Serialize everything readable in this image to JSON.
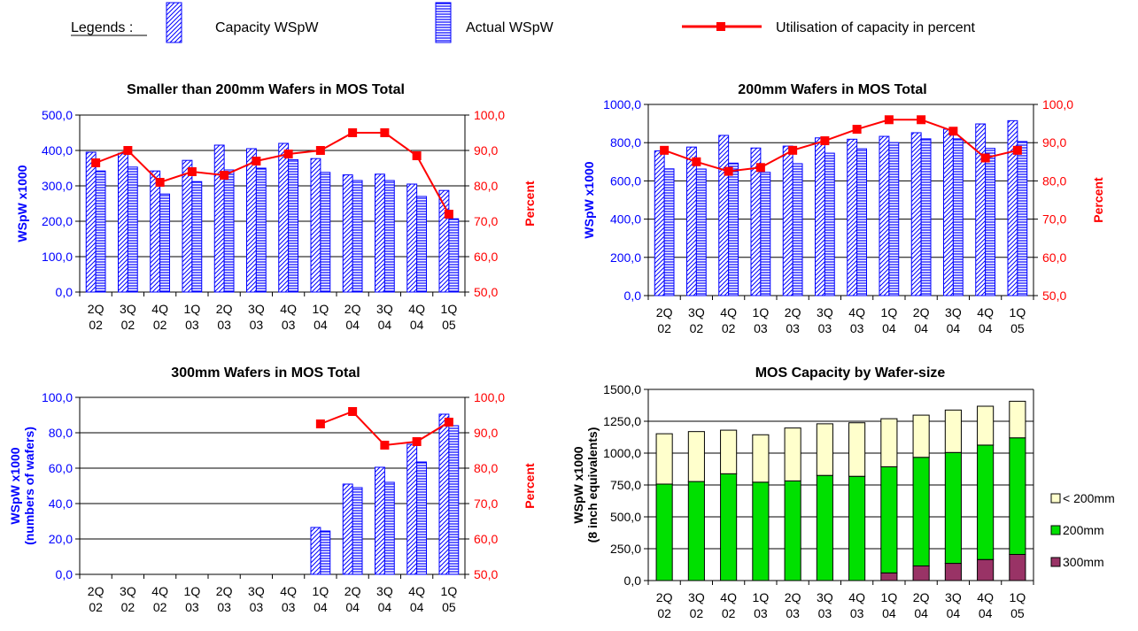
{
  "legend": {
    "title": "Legends :",
    "items": [
      "Capacity  WSpW",
      "Actual  WSpW",
      "Utilisation of capacity in percent"
    ]
  },
  "colors": {
    "blue": "#0000ff",
    "red": "#ff0000",
    "green": "#00e000",
    "cream": "#ffffcc",
    "maroon": "#993366",
    "grid": "#000000"
  },
  "chart_data": [
    {
      "type": "bar",
      "title": "Smaller than 200mm Wafers in MOS Total",
      "categories": [
        [
          "2Q",
          "02"
        ],
        [
          "3Q",
          "02"
        ],
        [
          "4Q",
          "02"
        ],
        [
          "1Q",
          "03"
        ],
        [
          "2Q",
          "03"
        ],
        [
          "3Q",
          "03"
        ],
        [
          "4Q",
          "03"
        ],
        [
          "1Q",
          "04"
        ],
        [
          "2Q",
          "04"
        ],
        [
          "3Q",
          "04"
        ],
        [
          "4Q",
          "04"
        ],
        [
          "1Q",
          "05"
        ]
      ],
      "ylabel": "WSpW x1000",
      "y2label": "Percent",
      "ylim": [
        0,
        500
      ],
      "yticks": [
        "0,0",
        "100,0",
        "200,0",
        "300,0",
        "400,0",
        "500,0"
      ],
      "y2lim": [
        50,
        100
      ],
      "y2ticks": [
        "50,0",
        "60,0",
        "70,0",
        "80,0",
        "90,0",
        "100,0"
      ],
      "series": [
        {
          "name": "Capacity  WSpW",
          "values": [
            395,
            392,
            342,
            372,
            415,
            405,
            420,
            377,
            331,
            333,
            305,
            287
          ]
        },
        {
          "name": "Actual  WSpW",
          "values": [
            342,
            353,
            277,
            312,
            345,
            350,
            374,
            338,
            315,
            315,
            270,
            207
          ]
        },
        {
          "name": "Utilisation of capacity in percent",
          "values": [
            86.5,
            90,
            81,
            84,
            83,
            87,
            89,
            90,
            95,
            95,
            88.5,
            72
          ]
        }
      ],
      "grid": "horizontal"
    },
    {
      "type": "bar",
      "title": "200mm Wafers in MOS Total",
      "categories": [
        [
          "2Q",
          "02"
        ],
        [
          "3Q",
          "02"
        ],
        [
          "4Q",
          "02"
        ],
        [
          "1Q",
          "03"
        ],
        [
          "2Q",
          "03"
        ],
        [
          "3Q",
          "03"
        ],
        [
          "4Q",
          "03"
        ],
        [
          "1Q",
          "04"
        ],
        [
          "2Q",
          "04"
        ],
        [
          "3Q",
          "04"
        ],
        [
          "4Q",
          "04"
        ],
        [
          "1Q",
          "05"
        ]
      ],
      "ylabel": "WSpW x1000",
      "y2label": "Percent",
      "ylim": [
        0,
        1000
      ],
      "yticks": [
        "0,0",
        "200,0",
        "400,0",
        "600,0",
        "800,0",
        "1000,0"
      ],
      "y2lim": [
        50,
        100
      ],
      "y2ticks": [
        "50,0",
        "60,0",
        "70,0",
        "80,0",
        "90,0",
        "100,0"
      ],
      "series": [
        {
          "name": "Capacity  WSpW",
          "values": [
            757,
            777,
            838,
            772,
            782,
            825,
            818,
            833,
            852,
            870,
            898,
            915
          ]
        },
        {
          "name": "Actual  WSpW",
          "values": [
            663,
            662,
            693,
            645,
            690,
            745,
            768,
            800,
            820,
            820,
            770,
            806
          ]
        },
        {
          "name": "Utilisation of capacity in percent",
          "values": [
            88,
            85,
            82.5,
            83.5,
            88,
            90.5,
            93.5,
            96,
            96,
            93,
            86,
            88
          ]
        }
      ],
      "grid": "horizontal"
    },
    {
      "type": "bar",
      "title": "300mm Wafers in MOS Total",
      "categories": [
        [
          "2Q",
          "02"
        ],
        [
          "3Q",
          "02"
        ],
        [
          "4Q",
          "02"
        ],
        [
          "1Q",
          "03"
        ],
        [
          "2Q",
          "03"
        ],
        [
          "3Q",
          "03"
        ],
        [
          "4Q",
          "03"
        ],
        [
          "1Q",
          "04"
        ],
        [
          "2Q",
          "04"
        ],
        [
          "3Q",
          "04"
        ],
        [
          "4Q",
          "04"
        ],
        [
          "1Q",
          "05"
        ]
      ],
      "ylabel": [
        "WSpW x1000",
        "(numbers of wafers)"
      ],
      "y2label": "Percent",
      "ylim": [
        0,
        100
      ],
      "yticks": [
        "0,0",
        "20,0",
        "40,0",
        "60,0",
        "80,0",
        "100,0"
      ],
      "y2lim": [
        50,
        100
      ],
      "y2ticks": [
        "50,0",
        "60,0",
        "70,0",
        "80,0",
        "90,0",
        "100,0"
      ],
      "series": [
        {
          "name": "Capacity  WSpW",
          "values": [
            null,
            null,
            null,
            null,
            null,
            null,
            null,
            26.5,
            51,
            60.5,
            73.5,
            90.5
          ]
        },
        {
          "name": "Actual  WSpW",
          "values": [
            null,
            null,
            null,
            null,
            null,
            null,
            null,
            24.5,
            49,
            52,
            63.5,
            84
          ]
        },
        {
          "name": "Utilisation of capacity in percent",
          "values": [
            null,
            null,
            null,
            null,
            null,
            null,
            null,
            92.5,
            96,
            86.5,
            87.5,
            93
          ]
        }
      ],
      "grid": "horizontal"
    },
    {
      "type": "bar",
      "stacked": true,
      "title": "MOS Capacity by Wafer-size",
      "categories": [
        [
          "2Q",
          "02"
        ],
        [
          "3Q",
          "02"
        ],
        [
          "4Q",
          "02"
        ],
        [
          "1Q",
          "03"
        ],
        [
          "2Q",
          "03"
        ],
        [
          "3Q",
          "03"
        ],
        [
          "4Q",
          "03"
        ],
        [
          "1Q",
          "04"
        ],
        [
          "2Q",
          "04"
        ],
        [
          "3Q",
          "04"
        ],
        [
          "4Q",
          "04"
        ],
        [
          "1Q",
          "05"
        ]
      ],
      "ylabel": [
        "WSpW x1000",
        "(8 inch equivalents)"
      ],
      "ylim": [
        0,
        1500
      ],
      "yticks": [
        "0,0",
        "250,0",
        "500,0",
        "750,0",
        "1000,0",
        "1250,0",
        "1500,0"
      ],
      "legend_position": "right",
      "series": [
        {
          "name": "300mm",
          "values": [
            0,
            0,
            0,
            0,
            0,
            0,
            0,
            60,
            115,
            135,
            165,
            205
          ]
        },
        {
          "name": "200mm",
          "values": [
            757,
            777,
            838,
            772,
            782,
            825,
            818,
            833,
            852,
            870,
            898,
            915
          ]
        },
        {
          "name": "< 200mm",
          "values": [
            395,
            392,
            342,
            372,
            415,
            405,
            420,
            377,
            331,
            333,
            305,
            287
          ]
        }
      ],
      "grid": "horizontal"
    }
  ]
}
